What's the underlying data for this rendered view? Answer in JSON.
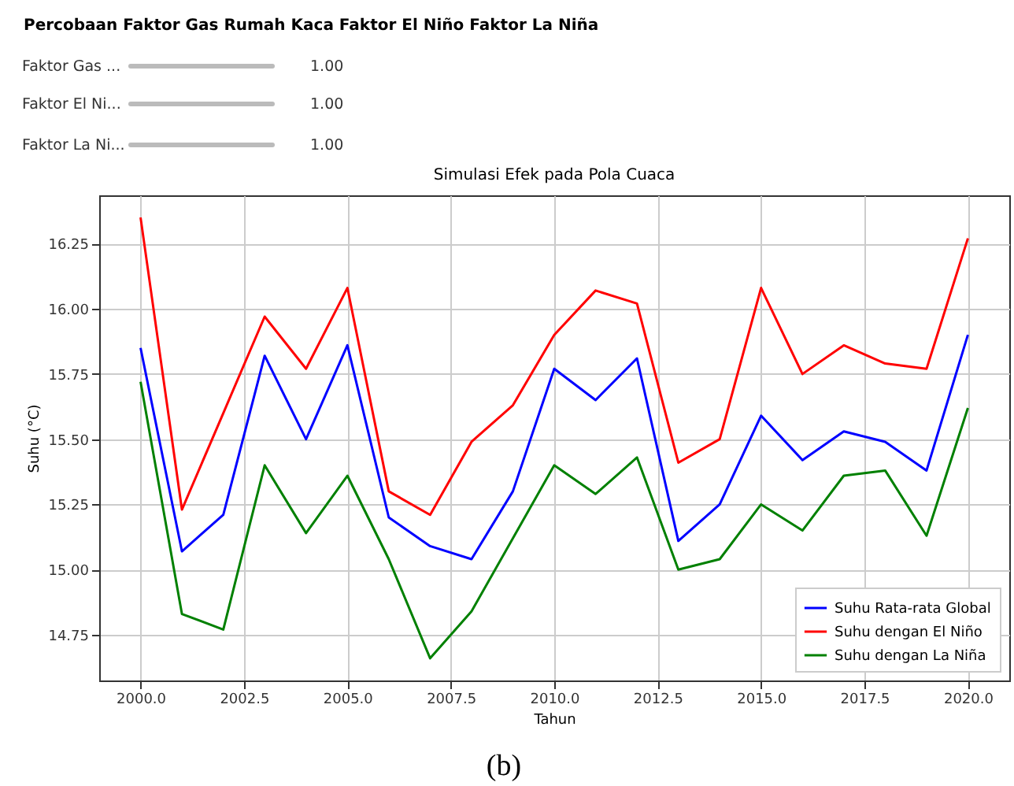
{
  "chart_data": {
    "type": "line",
    "title": "Simulasi Efek pada Pola Cuaca",
    "xlabel": "Tahun",
    "ylabel": "Suhu (°C)",
    "x": [
      2000,
      2001,
      2002,
      2003,
      2004,
      2005,
      2006,
      2007,
      2008,
      2009,
      2010,
      2011,
      2012,
      2013,
      2014,
      2015,
      2016,
      2017,
      2018,
      2019,
      2020
    ],
    "series": [
      {
        "name": "Suhu Rata-rata Global",
        "color": "#0000ff",
        "values": [
          15.85,
          15.07,
          15.21,
          15.82,
          15.5,
          15.86,
          15.2,
          15.09,
          15.04,
          15.3,
          15.77,
          15.65,
          15.81,
          15.11,
          15.25,
          15.59,
          15.42,
          15.53,
          15.49,
          15.38,
          15.9
        ]
      },
      {
        "name": "Suhu dengan El Niño",
        "color": "#ff0000",
        "values": [
          16.35,
          15.23,
          15.6,
          15.97,
          15.77,
          16.08,
          15.3,
          15.21,
          15.49,
          15.63,
          15.9,
          16.07,
          16.02,
          15.41,
          15.5,
          16.08,
          15.75,
          15.86,
          15.79,
          15.77,
          16.27
        ]
      },
      {
        "name": "Suhu dengan La Niña",
        "color": "#008000",
        "values": [
          15.72,
          14.83,
          14.77,
          15.4,
          15.14,
          15.36,
          15.04,
          14.66,
          14.84,
          15.12,
          15.4,
          15.29,
          15.43,
          15.0,
          15.04,
          15.25,
          15.15,
          15.36,
          15.38,
          15.13,
          15.62
        ]
      }
    ],
    "xlim": [
      1999.0,
      2021.0
    ],
    "xticks": [
      {
        "value": 2000,
        "label": "2000.0"
      },
      2002.5,
      {
        "value": 2005,
        "label": "2005.0"
      },
      2007.5,
      {
        "value": 2010,
        "label": "2010.0"
      },
      2012.5,
      {
        "value": 2015,
        "label": "2015.0"
      },
      2017.5,
      {
        "value": 2020,
        "label": "2020.0"
      }
    ],
    "ylim": [
      14.575,
      16.435
    ],
    "yticks": [
      14.75,
      {
        "value": 15,
        "label": "15.00"
      },
      15.25,
      {
        "value": 15.5,
        "label": "15.50"
      },
      15.75,
      {
        "value": 16,
        "label": "16.00"
      },
      16.25
    ],
    "grid": true,
    "legend": "bottom right",
    "marker": "none",
    "line_style": "solid",
    "annotations": [
      "Percobaan Faktor Gas Rumah Kaca Faktor El Niño Faktor La Niña",
      "Faktor Gas ...",
      "Faktor El Ni...",
      "Faktor La Ni...",
      "1.00",
      "1.00",
      "1.00",
      "(b)"
    ]
  }
}
